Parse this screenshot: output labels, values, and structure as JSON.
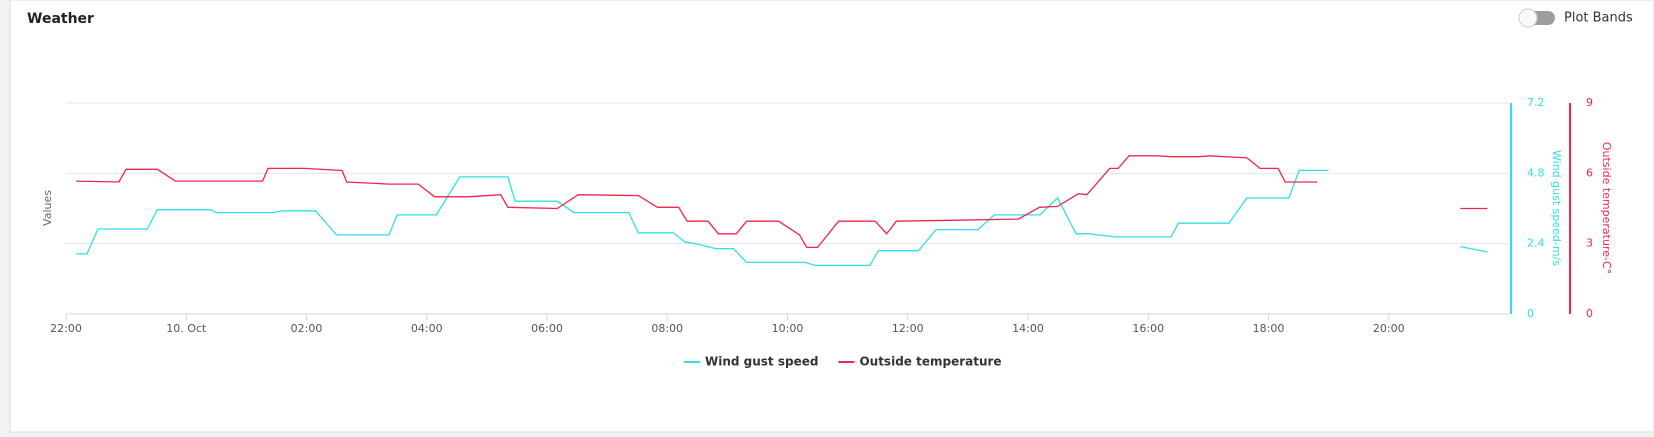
{
  "chart_data": {
    "type": "line",
    "title": "Weather",
    "toggle_label": "Plot Bands",
    "left_axis_title": "Values",
    "x_unit": "hours",
    "xlim": [
      -2,
      22
    ],
    "xticks": [
      {
        "value": -2,
        "label": "22:00"
      },
      {
        "value": 0,
        "label": "10. Oct"
      },
      {
        "value": 2,
        "label": "02:00"
      },
      {
        "value": 4,
        "label": "04:00"
      },
      {
        "value": 6,
        "label": "06:00"
      },
      {
        "value": 8,
        "label": "08:00"
      },
      {
        "value": 10,
        "label": "10:00"
      },
      {
        "value": 12,
        "label": "12:00"
      },
      {
        "value": 14,
        "label": "14:00"
      },
      {
        "value": 16,
        "label": "16:00"
      },
      {
        "value": 18,
        "label": "18:00"
      },
      {
        "value": 20,
        "label": "20:00"
      }
    ],
    "ylabel": "Wind gust speed-m/s",
    "ylim": [
      0,
      7.2
    ],
    "yticks": [
      0,
      2.4,
      4.8,
      7.2
    ],
    "grid": true,
    "y2label": "Outside temperature-C°",
    "y2lim": [
      0,
      9
    ],
    "y2ticks": [
      0,
      3,
      6,
      9
    ],
    "series": [
      {
        "name": "Wind gust speed",
        "color": "#2ee0e6",
        "axis": "y",
        "x": [
          -1.83,
          -1.65,
          -1.47,
          -0.65,
          -0.48,
          0.4,
          0.5,
          1.45,
          1.6,
          2.15,
          2.5,
          3.37,
          3.51,
          4.16,
          4.55,
          5.35,
          5.47,
          6.17,
          6.45,
          7.36,
          7.52,
          8.1,
          8.3,
          8.45,
          8.8,
          9.1,
          9.32,
          10.29,
          10.46,
          11.37,
          11.51,
          12.18,
          12.47,
          13.17,
          13.44,
          14.2,
          14.49,
          14.8,
          15.0,
          15.45,
          16.38,
          16.5,
          17.34,
          17.64,
          18.34,
          18.51,
          19.0,
          20.0,
          21.19,
          21.64
        ],
        "values": [
          2.05,
          2.05,
          2.9,
          2.9,
          3.56,
          3.56,
          3.46,
          3.46,
          3.52,
          3.52,
          2.7,
          2.7,
          3.38,
          3.38,
          4.68,
          4.68,
          3.85,
          3.85,
          3.46,
          3.46,
          2.77,
          2.77,
          2.45,
          2.41,
          2.23,
          2.23,
          1.76,
          1.76,
          1.66,
          1.66,
          2.16,
          2.16,
          2.88,
          2.88,
          3.38,
          3.38,
          3.96,
          2.74,
          2.74,
          2.63,
          2.63,
          3.1,
          3.1,
          3.96,
          3.96,
          4.9,
          4.9,
          null,
          2.3,
          2.12
        ]
      },
      {
        "name": "Outside temperature",
        "color": "#f0264f",
        "axis": "y2",
        "x": [
          -1.83,
          -1.12,
          -1.0,
          -0.48,
          -0.18,
          1.27,
          1.36,
          1.97,
          2.59,
          2.67,
          3.37,
          3.86,
          4.13,
          4.69,
          5.23,
          5.35,
          6.17,
          6.52,
          7.52,
          7.84,
          8.19,
          8.33,
          8.68,
          8.85,
          9.15,
          9.32,
          9.85,
          10.2,
          10.32,
          10.5,
          10.85,
          11.46,
          11.65,
          11.81,
          12.82,
          13.84,
          14.19,
          14.49,
          14.84,
          14.98,
          15.36,
          15.5,
          15.68,
          16.15,
          16.38,
          16.85,
          17.02,
          17.64,
          17.86,
          18.16,
          18.28,
          18.81,
          20.0,
          21.19,
          21.64
        ],
        "values": [
          5.67,
          5.63,
          6.17,
          6.17,
          5.67,
          5.67,
          6.21,
          6.21,
          6.12,
          5.63,
          5.54,
          5.54,
          5.0,
          5.0,
          5.09,
          4.55,
          4.5,
          5.09,
          5.05,
          4.55,
          4.55,
          3.96,
          3.96,
          3.42,
          3.42,
          3.96,
          3.96,
          3.38,
          2.84,
          2.84,
          3.96,
          3.96,
          3.42,
          3.96,
          4.0,
          4.05,
          4.55,
          4.59,
          5.13,
          5.09,
          6.21,
          6.21,
          6.75,
          6.75,
          6.71,
          6.71,
          6.75,
          6.66,
          6.21,
          6.21,
          5.63,
          5.63,
          null,
          4.5,
          4.5
        ]
      }
    ]
  }
}
